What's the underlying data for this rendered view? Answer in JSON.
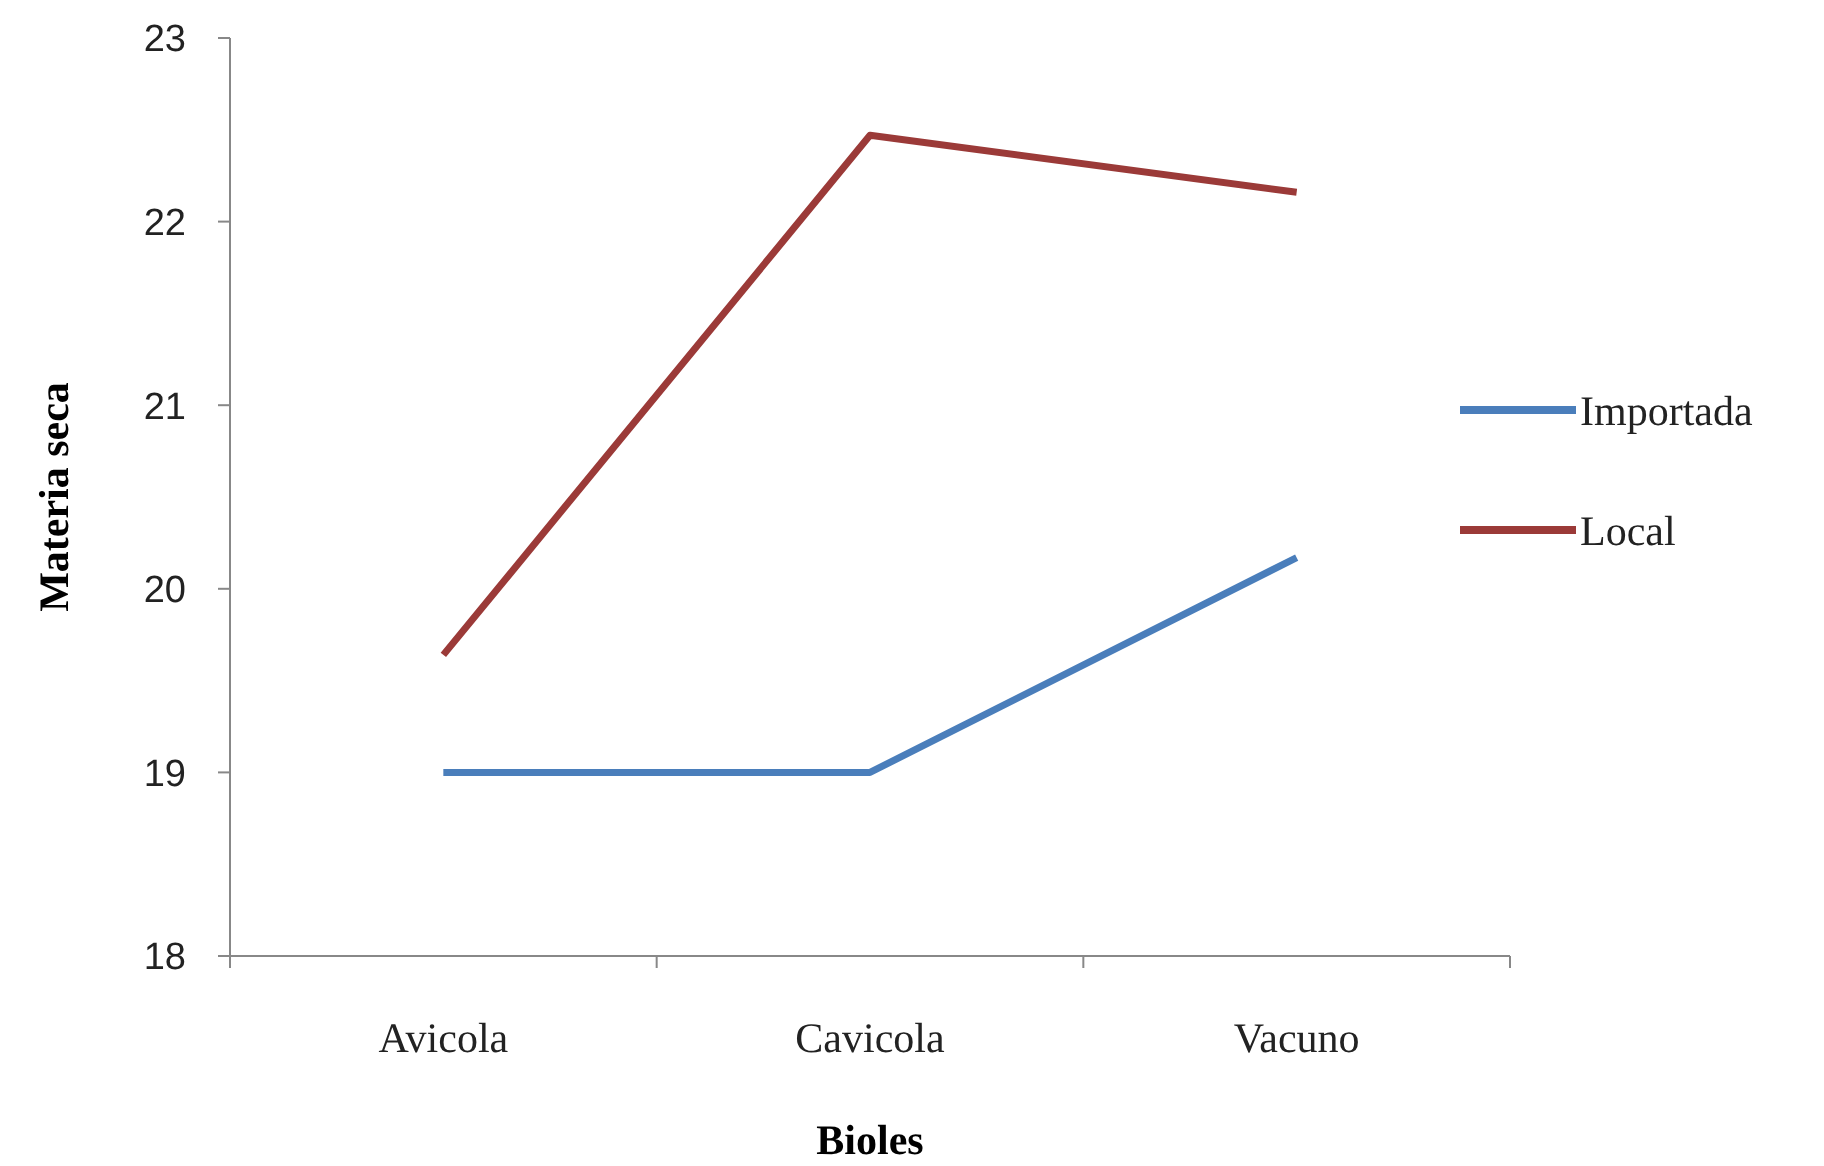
{
  "chart_data": {
    "type": "line",
    "xlabel": "Bioles",
    "ylabel": "Materia seca",
    "categories": [
      "Avicola",
      "Cavicola",
      "Vacuno"
    ],
    "series": [
      {
        "name": "Importada",
        "color": "#4a7ebb",
        "values": [
          19,
          19,
          20.17
        ]
      },
      {
        "name": "Local",
        "color": "#9b3a38",
        "values": [
          19.64,
          22.47,
          22.16
        ]
      }
    ],
    "ylim": [
      18,
      23
    ],
    "yticks": [
      18,
      19,
      20,
      21,
      22,
      23
    ],
    "grid": false,
    "legend": "right",
    "marker": "none",
    "line_style": "solid"
  }
}
